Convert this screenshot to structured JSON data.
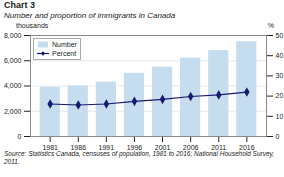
{
  "chart_data": {
    "type": "bar",
    "title": "Chart 3",
    "subtitle": "Number and proportion of immigrants in Canada",
    "ylabel": "thousands",
    "y2label": "%",
    "source": "Source: Statistics Canada, censuses of population, 1981 to 2016; National Household Survey, 2011.",
    "x": [
      1981,
      1986,
      1991,
      1996,
      2001,
      2006,
      2011,
      2016
    ],
    "xlim": [
      1977.5,
      2019.5
    ],
    "xticks": [
      1981,
      1986,
      1991,
      1996,
      2001,
      2006,
      2011,
      2016
    ],
    "ylim": [
      0,
      8000
    ],
    "yticks": [
      0,
      {
        "value": 2000,
        "label": "2,000"
      },
      {
        "value": 4000,
        "label": "4,000"
      },
      {
        "value": 6000,
        "label": "6,000"
      },
      {
        "value": 8000,
        "label": "8,000"
      }
    ],
    "y2lim": [
      0,
      50
    ],
    "y2ticks": [
      0,
      10,
      20,
      30,
      40,
      50
    ],
    "grid": true,
    "legend": "upper left",
    "series": [
      {
        "name": "Number",
        "type": "bar",
        "color": "#c5ddef",
        "values": [
          3900,
          4000,
          4300,
          5000,
          5500,
          6200,
          6800,
          7500
        ]
      },
      {
        "name": "Percent",
        "type": "line",
        "axis": "y2",
        "color": "#1a1a6e",
        "marker": "diamond",
        "values": [
          16.1,
          15.6,
          16.1,
          17.4,
          18.4,
          19.8,
          20.6,
          22.0
        ]
      }
    ]
  }
}
